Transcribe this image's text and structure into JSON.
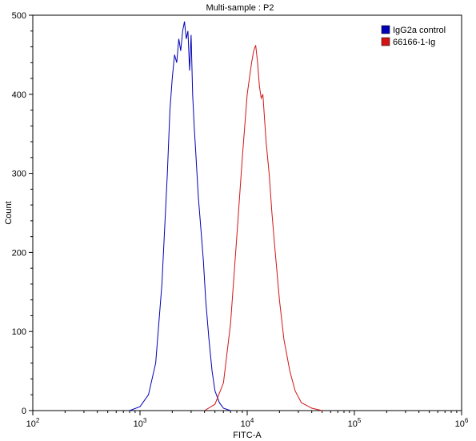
{
  "chart_data": {
    "type": "line",
    "title": "Multi-sample : P2",
    "xlabel": "FITC-A",
    "ylabel": "Count",
    "x_scale": "log",
    "xlim": [
      100,
      1000000
    ],
    "ylim": [
      0,
      500
    ],
    "grid": false,
    "legend_position": "top-right",
    "x_ticks": [
      100,
      1000,
      10000,
      100000,
      1000000
    ],
    "y_ticks": [
      0,
      100,
      200,
      300,
      400,
      500
    ],
    "series": [
      {
        "name": "IgG2a control",
        "color": "#0000b4",
        "x": [
          800,
          1000,
          1200,
          1400,
          1600,
          1800,
          1900,
          2000,
          2100,
          2200,
          2300,
          2400,
          2500,
          2600,
          2700,
          2800,
          2900,
          3000,
          3100,
          3200,
          3300,
          3500,
          3700,
          3900,
          4100,
          4400,
          4700,
          5000,
          5500,
          6000,
          7000
        ],
        "y": [
          0,
          5,
          20,
          60,
          160,
          300,
          380,
          420,
          450,
          440,
          470,
          455,
          480,
          492,
          470,
          480,
          430,
          475,
          400,
          360,
          330,
          270,
          230,
          190,
          140,
          90,
          50,
          25,
          10,
          3,
          0
        ]
      },
      {
        "name": "66166-1-Ig",
        "color": "#d21414",
        "x": [
          4000,
          5000,
          6000,
          7000,
          8000,
          9000,
          10000,
          11000,
          11500,
          12000,
          12500,
          13000,
          13500,
          14000,
          15000,
          16000,
          17000,
          18000,
          20000,
          22000,
          25000,
          28000,
          32000,
          40000,
          50000
        ],
        "y": [
          0,
          8,
          35,
          110,
          220,
          320,
          400,
          440,
          455,
          462,
          440,
          410,
          395,
          400,
          340,
          300,
          250,
          210,
          140,
          90,
          50,
          25,
          10,
          3,
          0
        ]
      }
    ]
  }
}
